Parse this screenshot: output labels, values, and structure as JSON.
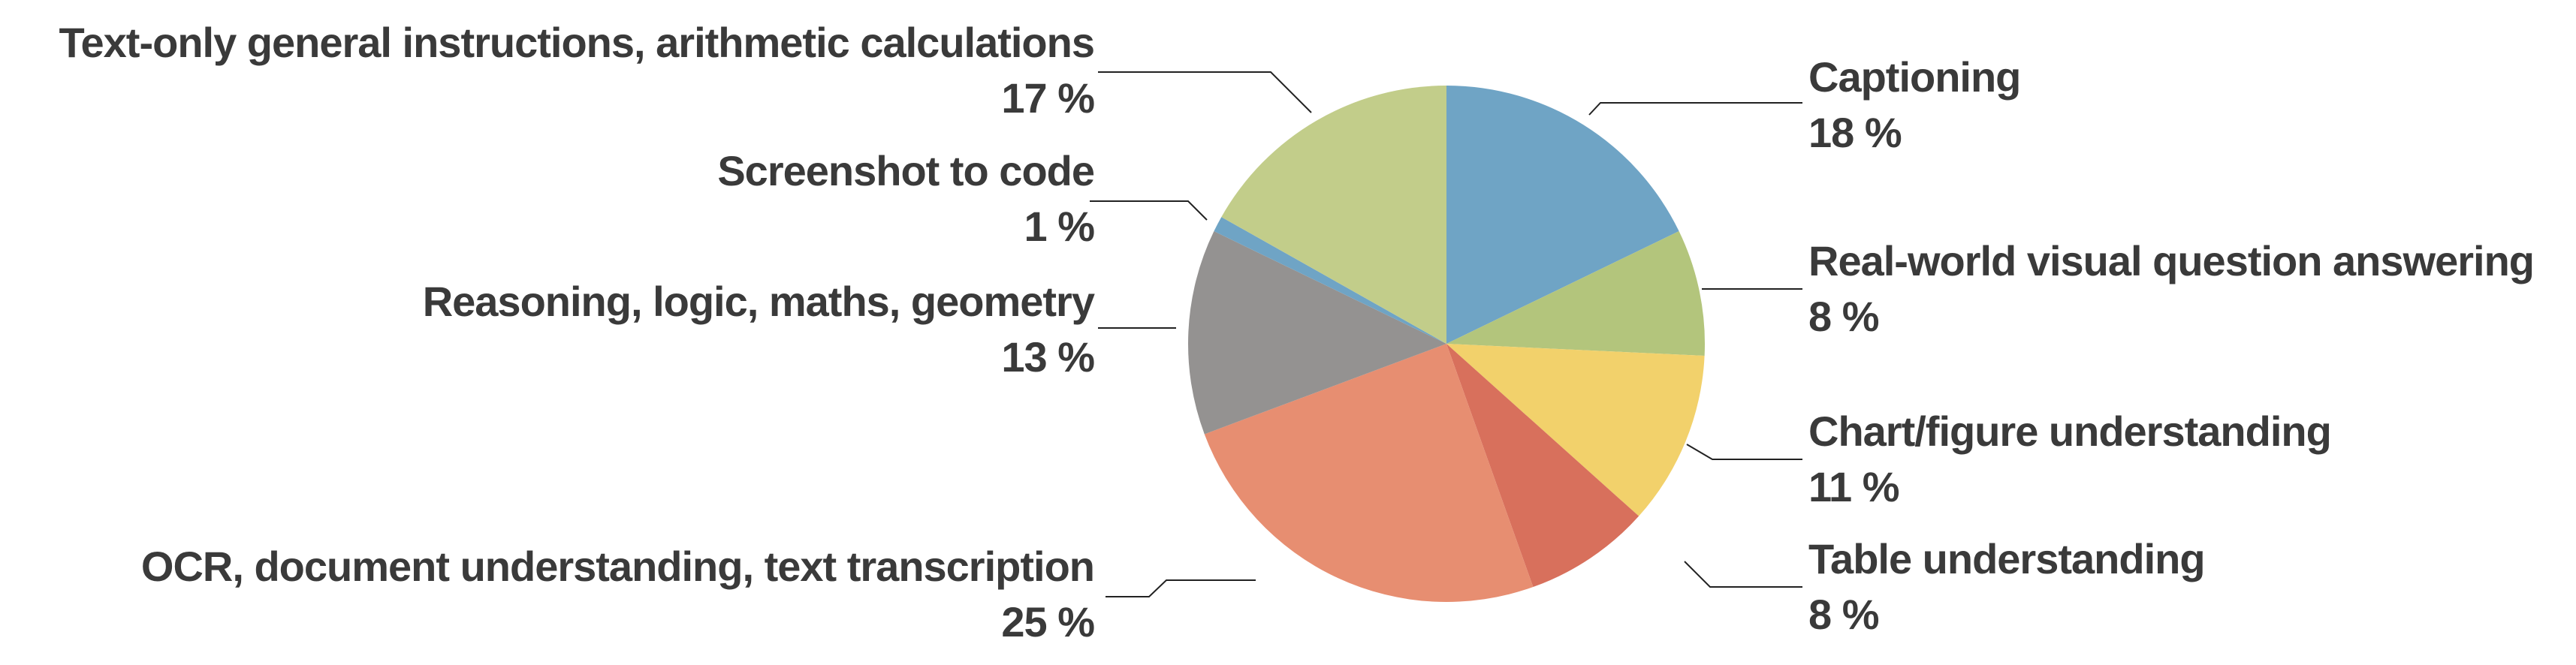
{
  "chart_data": {
    "type": "pie",
    "start_angle": "top",
    "direction": "clockwise",
    "values_unit": "%",
    "background": "#FFFFFF",
    "text_color": "#3A3A3A",
    "leader_line_color": "#222222",
    "segments": [
      {
        "id": "captioning",
        "label": "Captioning",
        "value": 18,
        "pct_label": "18 %",
        "color": "#6FA4C5",
        "label_side": "right"
      },
      {
        "id": "real-world-vqa",
        "label": "Real-world visual question answering",
        "value": 8,
        "pct_label": "8 %",
        "color": "#B3C57C",
        "label_side": "right"
      },
      {
        "id": "chart-figure",
        "label": "Chart/figure understanding",
        "value": 11,
        "pct_label": "11 %",
        "color": "#F2D16B",
        "label_side": "right"
      },
      {
        "id": "table-understanding",
        "label": "Table understanding",
        "value": 8,
        "pct_label": "8 %",
        "color": "#D8705C",
        "label_side": "right"
      },
      {
        "id": "ocr-document",
        "label": "OCR, document understanding, text transcription",
        "value": 25,
        "pct_label": "25 %",
        "color": "#E78E71",
        "label_side": "left"
      },
      {
        "id": "reasoning",
        "label": "Reasoning, logic, maths, geometry",
        "value": 13,
        "pct_label": "13 %",
        "color": "#949291",
        "label_side": "left"
      },
      {
        "id": "screenshot-to-code",
        "label": "Screenshot to code",
        "value": 1,
        "pct_label": "1 %",
        "color": "#6FA4C5",
        "label_side": "left"
      },
      {
        "id": "text-only",
        "label": "Text-only general instructions, arithmetic calculations",
        "value": 17,
        "pct_label": "17 %",
        "color": "#C2CD8A",
        "label_side": "left"
      }
    ]
  }
}
